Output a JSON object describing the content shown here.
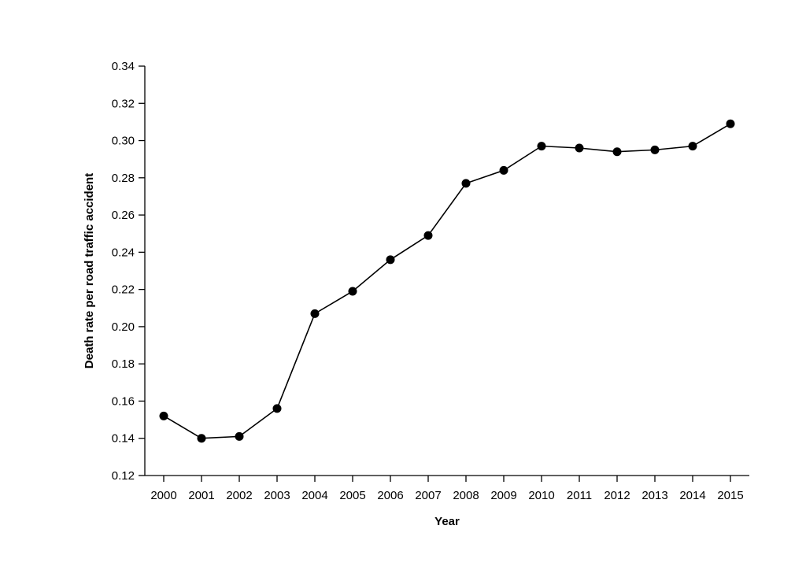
{
  "chart_data": {
    "type": "line",
    "title": "",
    "xlabel": "Year",
    "ylabel": "Death rate per road traffic accident",
    "x": [
      "2000",
      "2001",
      "2002",
      "2003",
      "2004",
      "2005",
      "2006",
      "2007",
      "2008",
      "2009",
      "2010",
      "2011",
      "2012",
      "2013",
      "2014",
      "2015"
    ],
    "series": [
      {
        "values": [
          0.152,
          0.14,
          0.141,
          0.156,
          0.207,
          0.219,
          0.236,
          0.249,
          0.277,
          0.284,
          0.297,
          0.296,
          0.294,
          0.295,
          0.297,
          0.309
        ]
      }
    ],
    "ylim": [
      0.12,
      0.34
    ],
    "yticks": [
      "0.12",
      "0.14",
      "0.16",
      "0.18",
      "0.20",
      "0.22",
      "0.24",
      "0.26",
      "0.28",
      "0.30",
      "0.32",
      "0.34"
    ],
    "grid": false,
    "legend": "none",
    "line_color": "#000000",
    "marker_color": "#000000"
  }
}
